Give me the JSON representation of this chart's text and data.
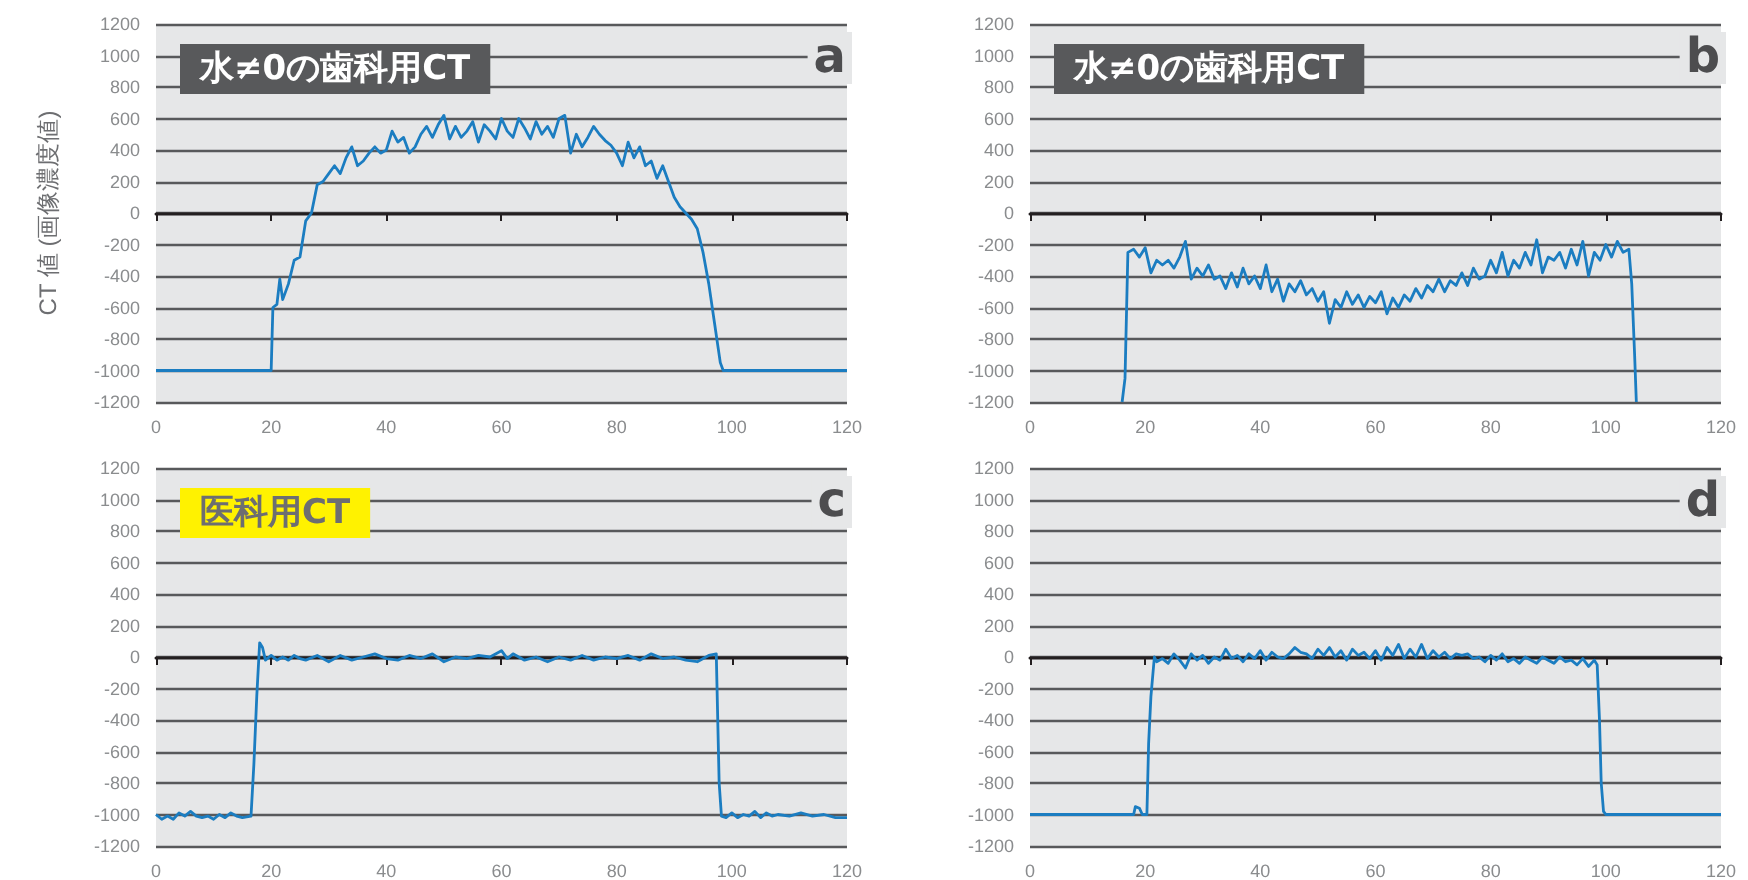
{
  "chart_data": [
    {
      "type": "line",
      "title": "水≠0の歯科用CT",
      "ylabel": "CT 値 (画像濃度値)",
      "annotations": [
        "a"
      ],
      "color": "#1b7dc1",
      "marker": "none",
      "grid": "y",
      "xlim": [
        0,
        120
      ],
      "xticks": [
        0,
        20,
        40,
        60,
        80,
        100,
        120
      ],
      "ylim": [
        -1200,
        1200
      ],
      "yticks": [
        -1200,
        -1000,
        -800,
        -600,
        -400,
        -200,
        0,
        200,
        400,
        600,
        800,
        1000,
        1200
      ],
      "x": [
        0,
        20,
        20.3,
        21,
        21.5,
        22,
        23,
        24,
        25,
        26,
        27,
        28,
        29,
        30,
        31,
        32,
        33,
        34,
        35,
        36,
        37,
        38,
        39,
        40,
        41,
        42,
        43,
        44,
        45,
        46,
        47,
        48,
        49,
        50,
        51,
        52,
        53,
        54,
        55,
        56,
        57,
        58,
        59,
        60,
        61,
        62,
        63,
        64,
        65,
        66,
        67,
        68,
        69,
        70,
        71,
        72,
        73,
        74,
        75,
        76,
        77,
        78,
        79,
        80,
        81,
        82,
        83,
        84,
        85,
        86,
        87,
        88,
        89,
        90,
        91,
        92,
        93,
        94,
        95,
        96,
        97,
        98,
        98.5,
        120
      ],
      "values": [
        -1000,
        -1000,
        -600,
        -580,
        -420,
        -550,
        -450,
        -300,
        -280,
        -50,
        0,
        180,
        200,
        250,
        300,
        250,
        350,
        420,
        300,
        330,
        380,
        420,
        380,
        400,
        520,
        450,
        480,
        380,
        420,
        500,
        550,
        480,
        560,
        620,
        470,
        550,
        480,
        520,
        580,
        450,
        560,
        520,
        470,
        600,
        520,
        480,
        600,
        540,
        470,
        580,
        500,
        550,
        480,
        600,
        620,
        380,
        500,
        420,
        480,
        550,
        500,
        460,
        430,
        380,
        300,
        450,
        350,
        420,
        300,
        330,
        220,
        300,
        200,
        100,
        40,
        0,
        -40,
        -100,
        -250,
        -450,
        -700,
        -950,
        -1000,
        -1000
      ]
    },
    {
      "type": "line",
      "title": "水≠0の歯科用CT",
      "annotations": [
        "b"
      ],
      "color": "#1b7dc1",
      "marker": "none",
      "grid": "y",
      "xlim": [
        0,
        120
      ],
      "xticks": [
        0,
        20,
        40,
        60,
        80,
        100,
        120
      ],
      "ylim": [
        -1200,
        1200
      ],
      "yticks": [
        -1200,
        -1000,
        -800,
        -600,
        -400,
        -200,
        0,
        200,
        400,
        600,
        800,
        1000,
        1200
      ],
      "x": [
        16,
        16.5,
        17,
        18,
        19,
        20,
        21,
        22,
        23,
        24,
        25,
        26,
        27,
        28,
        29,
        30,
        31,
        32,
        33,
        34,
        35,
        36,
        37,
        38,
        39,
        40,
        41,
        42,
        43,
        44,
        45,
        46,
        47,
        48,
        49,
        50,
        51,
        52,
        53,
        54,
        55,
        56,
        57,
        58,
        59,
        60,
        61,
        62,
        63,
        64,
        65,
        66,
        67,
        68,
        69,
        70,
        71,
        72,
        73,
        74,
        75,
        76,
        77,
        78,
        79,
        80,
        81,
        82,
        83,
        84,
        85,
        86,
        87,
        88,
        89,
        90,
        91,
        92,
        93,
        94,
        95,
        96,
        97,
        98,
        99,
        100,
        101,
        102,
        103,
        104,
        104.5,
        105,
        105.3
      ],
      "values": [
        -1200,
        -1050,
        -250,
        -230,
        -280,
        -220,
        -380,
        -300,
        -330,
        -300,
        -350,
        -280,
        -180,
        -420,
        -350,
        -400,
        -330,
        -420,
        -400,
        -480,
        -380,
        -470,
        -350,
        -450,
        -400,
        -480,
        -330,
        -500,
        -420,
        -560,
        -450,
        -500,
        -430,
        -520,
        -480,
        -560,
        -500,
        -700,
        -550,
        -600,
        -500,
        -580,
        -520,
        -600,
        -530,
        -570,
        -500,
        -640,
        -540,
        -600,
        -520,
        -560,
        -480,
        -540,
        -460,
        -500,
        -420,
        -500,
        -430,
        -460,
        -380,
        -460,
        -350,
        -420,
        -400,
        -300,
        -380,
        -250,
        -400,
        -300,
        -350,
        -250,
        -330,
        -170,
        -380,
        -280,
        -300,
        -250,
        -350,
        -230,
        -330,
        -180,
        -400,
        -250,
        -300,
        -200,
        -280,
        -180,
        -250,
        -230,
        -450,
        -900,
        -1200
      ]
    },
    {
      "type": "line",
      "title": "医科用CT",
      "annotations": [
        "c"
      ],
      "color": "#1b7dc1",
      "marker": "none",
      "grid": "y",
      "xlim": [
        0,
        120
      ],
      "xticks": [
        0,
        20,
        40,
        60,
        80,
        100,
        120
      ],
      "ylim": [
        -1200,
        1200
      ],
      "yticks": [
        -1200,
        -1000,
        -800,
        -600,
        -400,
        -200,
        0,
        200,
        400,
        600,
        800,
        1000,
        1200
      ],
      "x": [
        0,
        1,
        2,
        3,
        4,
        5,
        6,
        7,
        8,
        9,
        10,
        11,
        12,
        13,
        14,
        15,
        16.5,
        17,
        17.5,
        18,
        18.5,
        19,
        20,
        21,
        22,
        23,
        24,
        25,
        26,
        28,
        30,
        32,
        34,
        36,
        38,
        40,
        42,
        44,
        46,
        48,
        50,
        52,
        54,
        56,
        58,
        60,
        61,
        62,
        64,
        66,
        68,
        70,
        72,
        74,
        76,
        78,
        80,
        82,
        84,
        86,
        88,
        90,
        92,
        94,
        96,
        97.3,
        97.8,
        98.2,
        99,
        100,
        101,
        102,
        103,
        104,
        105,
        106,
        107,
        108,
        110,
        112,
        114,
        116,
        118,
        120
      ],
      "values": [
        -1000,
        -1030,
        -1010,
        -1030,
        -990,
        -1010,
        -980,
        -1010,
        -1020,
        -1010,
        -1030,
        -1000,
        -1020,
        -990,
        -1010,
        -1020,
        -1010,
        -680,
        -250,
        90,
        60,
        -20,
        10,
        -20,
        0,
        -20,
        10,
        -10,
        -20,
        10,
        -30,
        10,
        -20,
        0,
        20,
        -10,
        -20,
        10,
        -10,
        20,
        -30,
        0,
        -10,
        10,
        0,
        40,
        -10,
        20,
        -20,
        0,
        -30,
        0,
        -20,
        10,
        -20,
        0,
        -10,
        10,
        -20,
        20,
        -10,
        0,
        -20,
        -30,
        10,
        20,
        -800,
        -1010,
        -1020,
        -990,
        -1020,
        -1000,
        -1010,
        -980,
        -1020,
        -990,
        -1010,
        -1000,
        -1010,
        -990,
        -1010,
        -1000,
        -1020,
        -1020
      ]
    },
    {
      "type": "line",
      "annotations": [
        "d"
      ],
      "color": "#1b7dc1",
      "marker": "none",
      "grid": "y",
      "xlim": [
        0,
        120
      ],
      "xticks": [
        0,
        20,
        40,
        60,
        80,
        100,
        120
      ],
      "ylim": [
        -1200,
        1200
      ],
      "yticks": [
        -1200,
        -1000,
        -800,
        -600,
        -400,
        -200,
        0,
        200,
        400,
        600,
        800,
        1000,
        1200
      ],
      "x": [
        0,
        18,
        18.3,
        19,
        19.5,
        20.3,
        20.6,
        21,
        21.6,
        22,
        23,
        24,
        25,
        26,
        27,
        28,
        29,
        30,
        31,
        32,
        33,
        34,
        35,
        36,
        37,
        38,
        39,
        40,
        41,
        42,
        43,
        44,
        45,
        46,
        47,
        48,
        49,
        50,
        51,
        52,
        53,
        54,
        55,
        56,
        57,
        58,
        59,
        60,
        61,
        62,
        63,
        64,
        65,
        66,
        67,
        68,
        69,
        70,
        71,
        72,
        73,
        74,
        75,
        76,
        77,
        78,
        79,
        80,
        81,
        82,
        83,
        84,
        85,
        86,
        87,
        88,
        89,
        90,
        91,
        92,
        93,
        94,
        95,
        96,
        97,
        98,
        98.5,
        98.9,
        99.2,
        99.6,
        100,
        120
      ],
      "values": [
        -1000,
        -1000,
        -950,
        -960,
        -1000,
        -1000,
        -550,
        -250,
        0,
        -30,
        -10,
        -40,
        20,
        -20,
        -70,
        20,
        -20,
        10,
        -40,
        0,
        -20,
        50,
        -10,
        10,
        -30,
        20,
        -10,
        40,
        -20,
        30,
        0,
        -10,
        20,
        60,
        30,
        20,
        -10,
        50,
        10,
        60,
        0,
        40,
        -20,
        50,
        10,
        30,
        -10,
        40,
        -20,
        60,
        10,
        80,
        -10,
        50,
        0,
        80,
        -10,
        40,
        0,
        30,
        -10,
        20,
        10,
        20,
        -10,
        0,
        -30,
        10,
        -20,
        20,
        -30,
        -10,
        -40,
        0,
        -20,
        -40,
        0,
        -20,
        -40,
        0,
        -30,
        -20,
        -50,
        -10,
        -60,
        -20,
        -50,
        -400,
        -800,
        -980,
        -1000,
        -1000
      ]
    }
  ]
}
